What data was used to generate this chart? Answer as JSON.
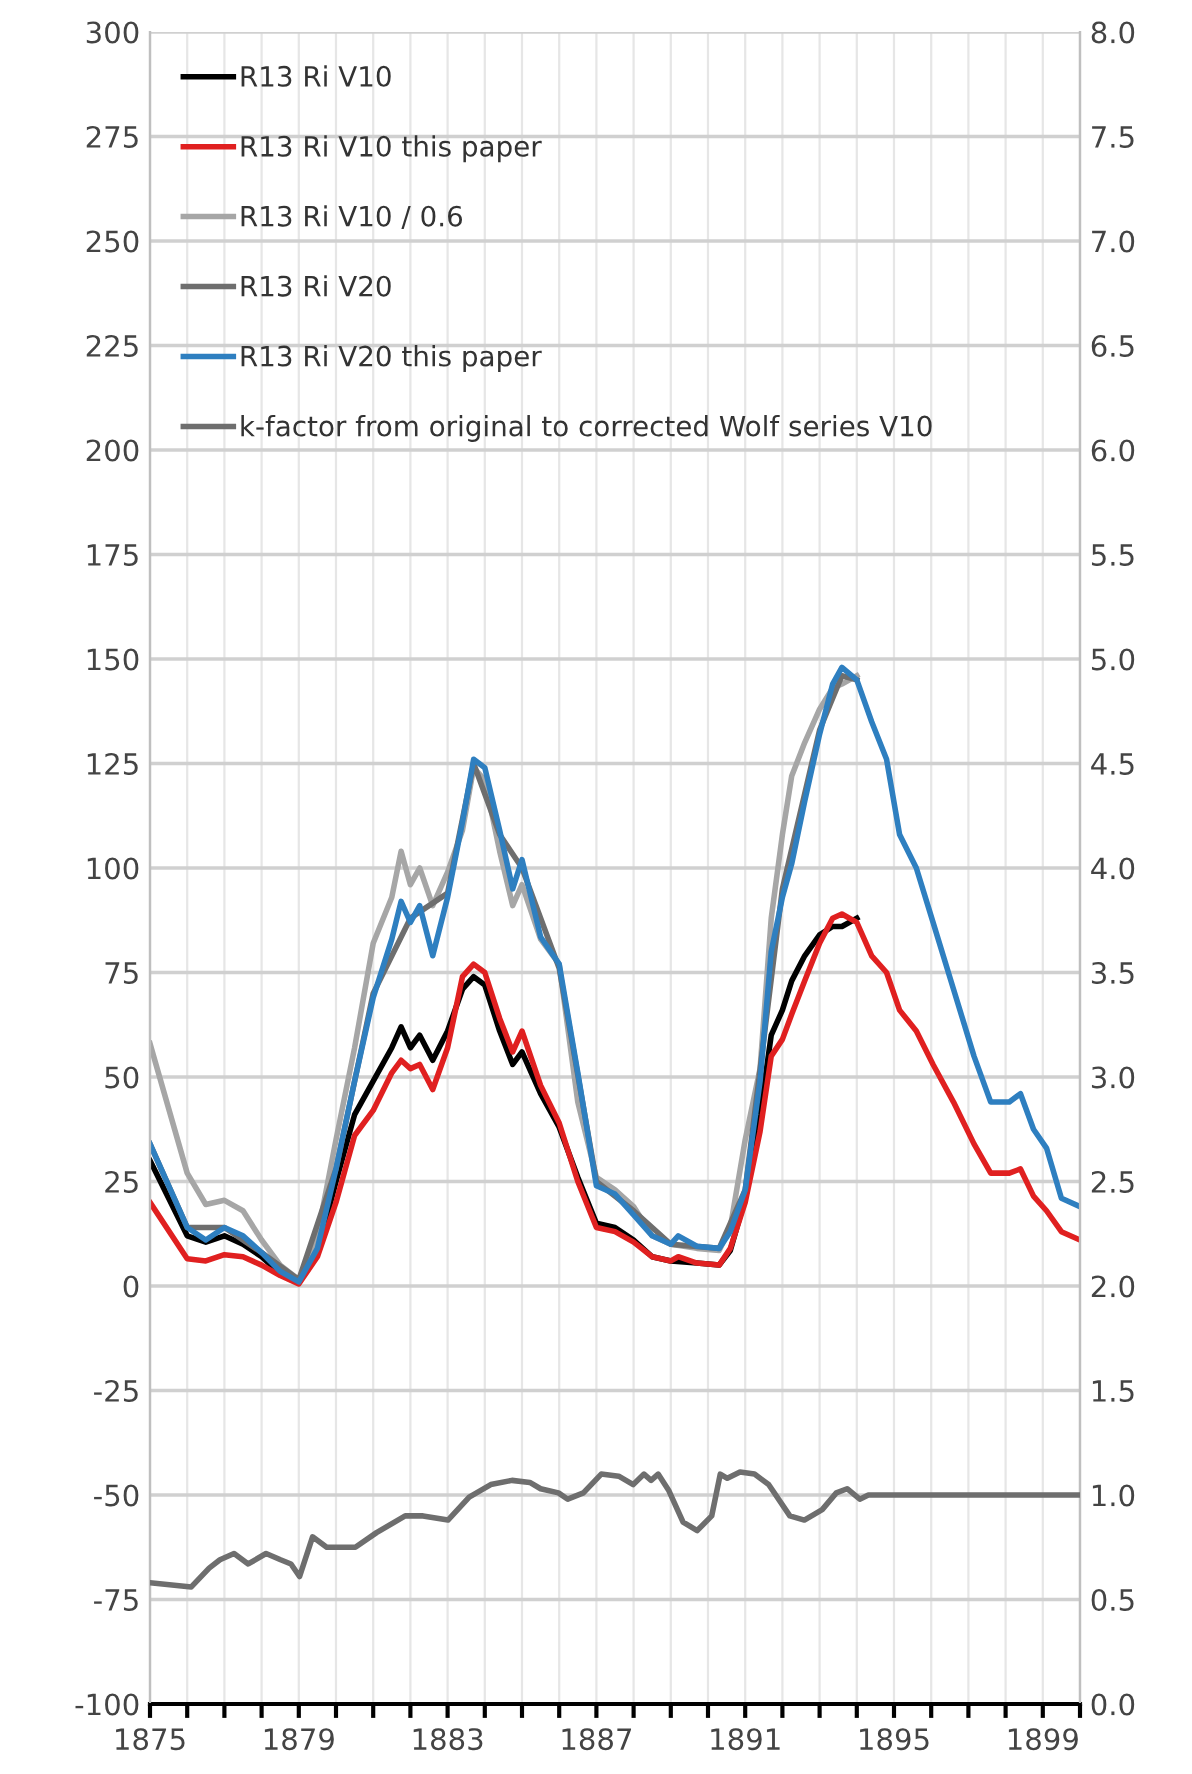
{
  "chart_data": {
    "type": "line",
    "xlim": [
      1875,
      1900
    ],
    "xticks": [
      1875,
      {
        "value": 1876,
        "label": null
      },
      {
        "value": 1877,
        "label": null
      },
      {
        "value": 1878,
        "label": null
      },
      1879,
      {
        "value": 1880,
        "label": null
      },
      {
        "value": 1881,
        "label": null
      },
      {
        "value": 1882,
        "label": null
      },
      1883,
      {
        "value": 1884,
        "label": null
      },
      {
        "value": 1885,
        "label": null
      },
      {
        "value": 1886,
        "label": null
      },
      1887,
      {
        "value": 1888,
        "label": null
      },
      {
        "value": 1889,
        "label": null
      },
      {
        "value": 1890,
        "label": null
      },
      1891,
      {
        "value": 1892,
        "label": null
      },
      {
        "value": 1893,
        "label": null
      },
      {
        "value": 1894,
        "label": null
      },
      1895,
      {
        "value": 1896,
        "label": null
      },
      {
        "value": 1897,
        "label": null
      },
      {
        "value": 1898,
        "label": null
      },
      1899,
      {
        "value": 1900,
        "label": null
      }
    ],
    "ylim": [
      -100,
      300
    ],
    "yticks": [
      -100,
      -75,
      -50,
      -25,
      0,
      25,
      50,
      75,
      100,
      125,
      150,
      175,
      200,
      225,
      250,
      275,
      300
    ],
    "y2lim": [
      0,
      8
    ],
    "y2ticks": [
      {
        "value": 0,
        "label": "0.0"
      },
      {
        "value": 0.5,
        "label": "0.5"
      },
      {
        "value": 1,
        "label": "1.0"
      },
      {
        "value": 1.5,
        "label": "1.5"
      },
      {
        "value": 2,
        "label": "2.0"
      },
      {
        "value": 2.5,
        "label": "2.5"
      },
      {
        "value": 3,
        "label": "3.0"
      },
      {
        "value": 3.5,
        "label": "3.5"
      },
      {
        "value": 4,
        "label": "4.0"
      },
      {
        "value": 4.5,
        "label": "4.5"
      },
      {
        "value": 5,
        "label": "5.0"
      },
      {
        "value": 5.5,
        "label": "5.5"
      },
      {
        "value": 6,
        "label": "6.0"
      },
      {
        "value": 6.5,
        "label": "6.5"
      },
      {
        "value": 7,
        "label": "7.0"
      },
      {
        "value": 7.5,
        "label": "7.5"
      },
      {
        "value": 8,
        "label": "8.0"
      }
    ],
    "grid": true,
    "legend": "top left",
    "marker": "none",
    "line_style": "solid",
    "series": [
      {
        "name": "R13 Ri V10",
        "color": "#000000",
        "x": [
          1875,
          1876,
          1876.5,
          1877,
          1877.5,
          1878,
          1878.5,
          1879,
          1879.5,
          1880,
          1880.5,
          1881,
          1881.5,
          1881.75,
          1882,
          1882.25,
          1882.6,
          1883,
          1883.4,
          1883.7,
          1884,
          1884.4,
          1884.75,
          1885,
          1885.5,
          1886,
          1886.5,
          1887,
          1887.5,
          1888,
          1888.5,
          1889,
          1889.7,
          1890.3,
          1890.6,
          1891,
          1891.4,
          1891.7,
          1892,
          1892.25,
          1892.6,
          1893,
          1893.35,
          1893.6,
          1894
        ],
        "values": [
          30,
          12,
          10.5,
          12,
          10,
          7,
          3,
          1,
          8,
          25,
          41,
          49,
          57,
          62,
          57,
          60,
          54,
          61,
          71,
          74,
          72,
          61,
          53,
          56,
          46,
          38,
          26,
          15,
          14,
          11,
          7,
          6,
          5.5,
          5,
          8.5,
          21,
          41,
          60,
          66,
          73,
          79,
          84,
          86,
          86,
          88
        ]
      },
      {
        "name": "R13 Ri V10 this paper",
        "color": "#e02020",
        "x": [
          1875,
          1876,
          1876.5,
          1877,
          1877.5,
          1878,
          1878.5,
          1879,
          1879.5,
          1880,
          1880.5,
          1881,
          1881.5,
          1881.75,
          1882,
          1882.25,
          1882.6,
          1883,
          1883.4,
          1883.7,
          1884,
          1884.4,
          1884.75,
          1885,
          1885.5,
          1886,
          1886.5,
          1887,
          1887.5,
          1888,
          1888.5,
          1889,
          1889.2,
          1889.7,
          1890.3,
          1890.6,
          1891,
          1891.4,
          1891.7,
          1892,
          1892.25,
          1892.6,
          1893,
          1893.35,
          1893.6,
          1894,
          1894.4,
          1894.8,
          1895.15,
          1895.6,
          1896.05,
          1896.6,
          1897.15,
          1897.6,
          1898.1,
          1898.4,
          1898.75,
          1899.1,
          1899.5,
          1900
        ],
        "values": [
          20,
          6.5,
          6,
          7.5,
          7,
          5,
          2.5,
          0.5,
          7,
          20,
          36,
          42,
          51,
          54,
          52,
          53,
          47,
          57,
          74,
          77,
          75,
          64,
          56,
          61,
          48,
          39,
          25,
          14,
          13,
          10.5,
          7,
          6,
          7,
          5.5,
          5,
          9,
          20,
          37,
          55,
          59,
          65,
          73,
          82,
          88,
          89,
          87,
          79,
          75,
          66,
          61,
          53,
          44,
          34,
          27,
          27,
          28,
          21.5,
          18,
          13,
          11
        ]
      },
      {
        "name": "R13 Ri V10 / 0.6",
        "color": "#a6a6a6",
        "x": [
          1875,
          1876,
          1876.5,
          1877,
          1877.5,
          1878,
          1878.5,
          1879,
          1879.5,
          1880,
          1880.5,
          1881,
          1881.5,
          1881.75,
          1882,
          1882.25,
          1882.6,
          1883,
          1883.4,
          1883.7,
          1884,
          1884.4,
          1884.75,
          1885,
          1885.5,
          1886,
          1886.5,
          1887,
          1887.5,
          1888,
          1888.5,
          1889,
          1889.7,
          1890.3,
          1890.6,
          1891,
          1891.4,
          1891.7,
          1892,
          1892.25,
          1892.6,
          1893,
          1893.35,
          1893.6,
          1894
        ],
        "values": [
          58,
          27,
          19.5,
          20.5,
          18,
          11,
          5,
          1.5,
          12,
          35,
          57,
          82,
          93,
          104,
          96,
          100,
          91,
          99,
          109,
          124,
          121,
          104,
          91,
          96,
          83,
          77,
          44,
          26,
          23,
          19,
          12,
          10,
          9,
          8.5,
          14,
          35,
          52,
          88,
          108,
          122,
          130,
          138,
          143,
          144,
          146
        ]
      },
      {
        "name": "R13 Ri V20",
        "color": "#6e6e6e",
        "x": [
          1875,
          1876,
          1877,
          1878,
          1879,
          1880,
          1881,
          1882,
          1883,
          1883.7,
          1884.4,
          1885,
          1886,
          1887,
          1888,
          1889,
          1890.3,
          1891,
          1892,
          1893,
          1893.6,
          1894
        ],
        "values": [
          34,
          14,
          14,
          8,
          1.5,
          28,
          70,
          88,
          94,
          125,
          108,
          100,
          76,
          25,
          18,
          10,
          9,
          23,
          95,
          133,
          146,
          145
        ]
      },
      {
        "name": "R13 Ri V20 this paper",
        "color": "#2e7fc0",
        "x": [
          1875,
          1876,
          1876.5,
          1877,
          1877.5,
          1878,
          1878.5,
          1879,
          1879.5,
          1880,
          1880.5,
          1881,
          1881.5,
          1881.75,
          1882,
          1882.25,
          1882.6,
          1883,
          1883.4,
          1883.7,
          1884,
          1884.4,
          1884.75,
          1885,
          1885.5,
          1886,
          1886.5,
          1887,
          1887.5,
          1888,
          1888.5,
          1889,
          1889.2,
          1889.7,
          1890.3,
          1890.6,
          1891,
          1891.4,
          1891.7,
          1892,
          1892.25,
          1892.6,
          1893,
          1893.35,
          1893.6,
          1894,
          1894.4,
          1894.8,
          1895.15,
          1895.6,
          1896.05,
          1896.6,
          1897.15,
          1897.6,
          1898.1,
          1898.4,
          1898.75,
          1899.1,
          1899.5,
          1900
        ],
        "values": [
          34,
          14,
          11,
          14,
          12,
          8,
          3.5,
          1,
          9,
          28,
          49,
          69,
          83,
          92,
          87,
          91,
          79,
          93,
          111,
          126,
          124,
          109,
          95,
          102,
          83.5,
          77,
          51,
          24,
          22,
          17,
          12,
          10,
          12,
          9.5,
          9,
          13,
          23,
          49,
          80,
          93,
          101,
          116,
          132,
          144,
          148,
          145,
          135,
          126,
          108,
          100,
          87,
          71,
          55,
          44,
          44,
          46,
          37.5,
          33,
          21,
          19
        ]
      },
      {
        "name": "k-factor from original to corrected Wolf series V10",
        "color": "#6e6e6e",
        "axis": "y2",
        "x": [
          1875,
          1876.11,
          1876.59,
          1876.88,
          1877.26,
          1877.64,
          1878.12,
          1878.51,
          1878.79,
          1879.02,
          1879.37,
          1879.75,
          1880.52,
          1881.09,
          1881.86,
          1882.34,
          1883.01,
          1883.58,
          1884.16,
          1884.73,
          1885.21,
          1885.5,
          1885.98,
          1886.23,
          1886.65,
          1887.13,
          1887.6,
          1887.99,
          1888.28,
          1888.47,
          1888.66,
          1888.95,
          1889.33,
          1889.71,
          1890.1,
          1890.33,
          1890.52,
          1890.86,
          1891.25,
          1891.63,
          1892.2,
          1892.59,
          1893.07,
          1893.45,
          1893.74,
          1894.08,
          1894.31,
          1900
        ],
        "values": [
          0.58,
          0.56,
          0.65,
          0.69,
          0.72,
          0.67,
          0.72,
          0.69,
          0.67,
          0.61,
          0.8,
          0.75,
          0.75,
          0.82,
          0.9,
          0.9,
          0.88,
          0.99,
          1.05,
          1.07,
          1.06,
          1.03,
          1.01,
          0.98,
          1.01,
          1.1,
          1.09,
          1.05,
          1.1,
          1.07,
          1.1,
          1.02,
          0.87,
          0.83,
          0.9,
          1.1,
          1.08,
          1.11,
          1.1,
          1.05,
          0.9,
          0.88,
          0.93,
          1.01,
          1.03,
          0.98,
          1.0,
          1.0
        ]
      }
    ]
  }
}
